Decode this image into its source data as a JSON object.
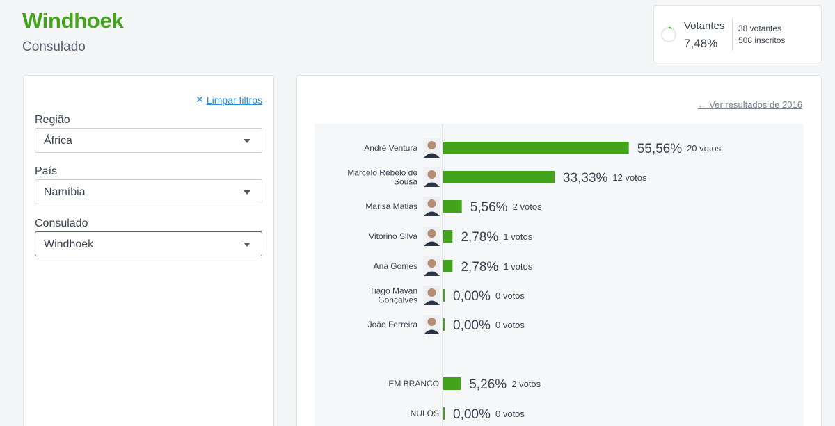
{
  "header": {
    "title": "Windhoek",
    "subtitle": "Consulado"
  },
  "turnout": {
    "label": "Votantes",
    "percent": "7,48%",
    "fraction": 0.0748,
    "votantes": "38 votantes",
    "inscritos": "508 inscritos",
    "ring_color": "#43a31d"
  },
  "filters": {
    "clear_label": "Limpar filtros",
    "regiao_label": "Região",
    "regiao_value": "África",
    "pais_label": "País",
    "pais_value": "Namíbia",
    "consulado_label": "Consulado",
    "consulado_value": "Windhoek"
  },
  "results": {
    "prev_link": "Ver resultados de 2016"
  },
  "chart_data": {
    "type": "bar",
    "orientation": "horizontal",
    "bar_color": "#43a31d",
    "xlim": [
      0,
      100
    ],
    "series": [
      {
        "name": "André Ventura",
        "label_lines": [
          "André Ventura"
        ],
        "percent": 55.56,
        "percent_label": "55,56%",
        "votes_label": "20 votos",
        "has_photo": true
      },
      {
        "name": "Marcelo Rebelo de Sousa",
        "label_lines": [
          "Marcelo Rebelo de",
          "Sousa"
        ],
        "percent": 33.33,
        "percent_label": "33,33%",
        "votes_label": "12 votos",
        "has_photo": true
      },
      {
        "name": "Marisa Matias",
        "label_lines": [
          "Marisa Matias"
        ],
        "percent": 5.56,
        "percent_label": "5,56%",
        "votes_label": "2 votos",
        "has_photo": true
      },
      {
        "name": "Vitorino Silva",
        "label_lines": [
          "Vitorino Silva"
        ],
        "percent": 2.78,
        "percent_label": "2,78%",
        "votes_label": "1 votos",
        "has_photo": true
      },
      {
        "name": "Ana Gomes",
        "label_lines": [
          "Ana Gomes"
        ],
        "percent": 2.78,
        "percent_label": "2,78%",
        "votes_label": "1 votos",
        "has_photo": true
      },
      {
        "name": "Tiago Mayan Gonçalves",
        "label_lines": [
          "Tiago Mayan",
          "Gonçalves"
        ],
        "percent": 0.0,
        "percent_label": "0,00%",
        "votes_label": "0 votos",
        "has_photo": true
      },
      {
        "name": "João Ferreira",
        "label_lines": [
          "João Ferreira"
        ],
        "percent": 0.0,
        "percent_label": "0,00%",
        "votes_label": "0 votos",
        "has_photo": true
      },
      {
        "name": "EM BRANCO",
        "label_lines": [
          "EM BRANCO"
        ],
        "percent": 5.26,
        "percent_label": "5,26%",
        "votes_label": "2 votos",
        "has_photo": false
      },
      {
        "name": "NULOS",
        "label_lines": [
          "NULOS"
        ],
        "percent": 0.0,
        "percent_label": "0,00%",
        "votes_label": "0 votos",
        "has_photo": false
      }
    ]
  }
}
